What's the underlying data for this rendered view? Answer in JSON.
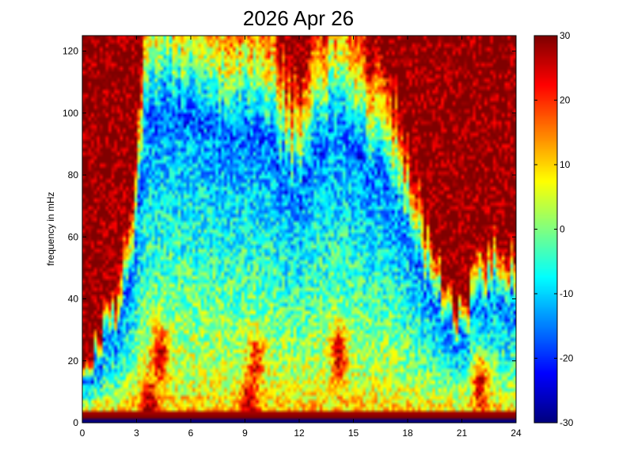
{
  "chart_data": {
    "type": "heatmap",
    "title": "2026 Apr 26",
    "xlabel": "",
    "ylabel": "frequency in mHz",
    "xlim": [
      0,
      24
    ],
    "ylim": [
      0,
      125
    ],
    "xticks": [
      0,
      3,
      6,
      9,
      12,
      15,
      18,
      21,
      24
    ],
    "yticks": [
      0,
      20,
      40,
      60,
      80,
      100,
      120
    ],
    "colormap": "jet",
    "clim": [
      -30,
      30
    ],
    "colorbar_ticks": [
      -30,
      -20,
      -10,
      0,
      10,
      20,
      30
    ],
    "x_bin_hours": 0.16,
    "y_bin_mhz": 1.25,
    "low_freq_band": [
      {
        "f": 0.6,
        "value": -30
      },
      {
        "f": 1.9,
        "value": 30
      },
      {
        "f": 3.1,
        "value": 28
      }
    ],
    "noise_floor_ceiling_mhz": [
      {
        "t": 0.0,
        "f": 15
      },
      {
        "t": 1.0,
        "f": 20
      },
      {
        "t": 2.0,
        "f": 30
      },
      {
        "t": 3.0,
        "f": 55
      },
      {
        "t": 3.5,
        "f": 95
      },
      {
        "t": 4.5,
        "f": 98
      },
      {
        "t": 6.0,
        "f": 95
      },
      {
        "t": 7.5,
        "f": 88
      },
      {
        "t": 9.0,
        "f": 92
      },
      {
        "t": 10.5,
        "f": 85
      },
      {
        "t": 12.0,
        "f": 70
      },
      {
        "t": 13.0,
        "f": 88
      },
      {
        "t": 14.0,
        "f": 92
      },
      {
        "t": 15.0,
        "f": 85
      },
      {
        "t": 16.5,
        "f": 75
      },
      {
        "t": 18.0,
        "f": 60
      },
      {
        "t": 19.5,
        "f": 35
      },
      {
        "t": 21.0,
        "f": 25
      },
      {
        "t": 22.0,
        "f": 35
      },
      {
        "t": 23.0,
        "f": 40
      },
      {
        "t": 24.0,
        "f": 35
      }
    ],
    "hotspots": [
      {
        "t": 4.3,
        "f": 22,
        "value": 26
      },
      {
        "t": 9.6,
        "f": 20,
        "value": 22
      },
      {
        "t": 14.2,
        "f": 22,
        "value": 26
      },
      {
        "t": 22.0,
        "f": 12,
        "value": 26
      },
      {
        "t": 3.7,
        "f": 5,
        "value": 30
      },
      {
        "t": 9.2,
        "f": 5,
        "value": 28
      }
    ]
  }
}
